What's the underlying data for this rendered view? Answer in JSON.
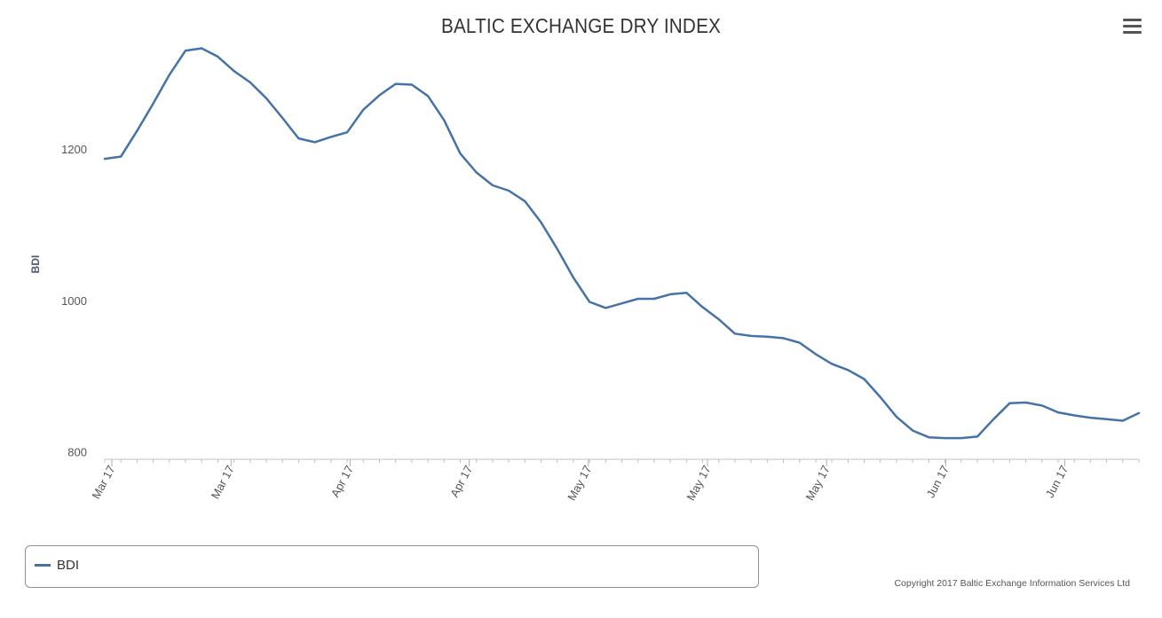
{
  "chart_data": {
    "type": "line",
    "title": "BALTIC EXCHANGE DRY INDEX",
    "ylabel": "BDI",
    "xlabel": "",
    "ylim": [
      790,
      1350
    ],
    "yticks": [
      800,
      1000,
      1200
    ],
    "x_tick_labels": [
      "Mar 17",
      "Mar 17",
      "Apr 17",
      "Apr 17",
      "May 17",
      "May 17",
      "May 17",
      "Jun 17",
      "Jun 17"
    ],
    "series": [
      {
        "name": "BDI",
        "color": "#4572a7",
        "values": [
          1187,
          1190,
          1224,
          1260,
          1298,
          1330,
          1333,
          1322,
          1303,
          1288,
          1267,
          1241,
          1214,
          1209,
          1216,
          1222,
          1252,
          1271,
          1286,
          1285,
          1270,
          1238,
          1194,
          1169,
          1152,
          1145,
          1131,
          1103,
          1068,
          1030,
          998,
          990,
          996,
          1002,
          1002,
          1008,
          1010,
          991,
          975,
          956,
          953,
          952,
          950,
          944,
          929,
          916,
          908,
          896,
          872,
          846,
          828,
          819,
          818,
          818,
          820,
          843,
          864,
          865,
          861,
          852,
          848,
          845,
          843,
          841,
          851
        ]
      }
    ],
    "legend_position": "bottom-left",
    "grid": false
  },
  "header": {
    "menu_icon": "hamburger-menu-icon"
  },
  "legend": {
    "series_label": "BDI"
  },
  "credits": {
    "text": "Copyright 2017 Baltic Exchange Information Services Ltd"
  }
}
